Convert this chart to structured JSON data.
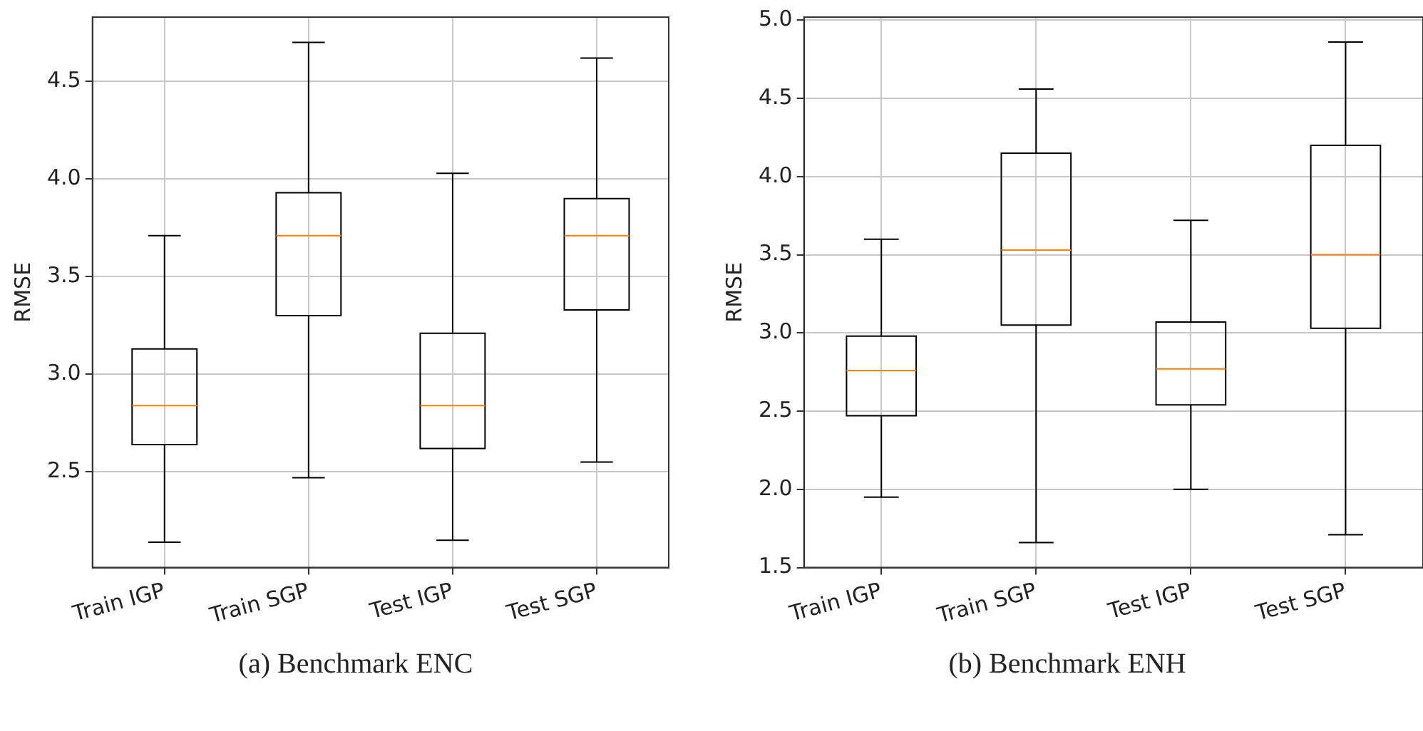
{
  "chart_data": [
    {
      "type": "box",
      "title": "(a) Benchmark ENC",
      "ylabel": "RMSE",
      "categories": [
        "Train IGP",
        "Train SGP",
        "Test IGP",
        "Test SGP"
      ],
      "boxes": [
        {
          "low": 2.14,
          "q1": 2.64,
          "median": 2.84,
          "q3": 3.13,
          "high": 3.71
        },
        {
          "low": 2.47,
          "q1": 3.3,
          "median": 3.71,
          "q3": 3.93,
          "high": 4.7
        },
        {
          "low": 2.15,
          "q1": 2.62,
          "median": 2.84,
          "q3": 3.21,
          "high": 4.03
        },
        {
          "low": 2.55,
          "q1": 3.33,
          "median": 3.71,
          "q3": 3.9,
          "high": 4.62
        }
      ],
      "ylim": [
        2.01,
        4.83
      ],
      "yticks": [
        2.5,
        {
          "value": 3,
          "label": "3.0"
        },
        3.5,
        {
          "value": 4,
          "label": "4.0"
        },
        4.5
      ],
      "grid": true
    },
    {
      "type": "box",
      "title": "(b) Benchmark ENH",
      "ylabel": "RMSE",
      "categories": [
        "Train IGP",
        "Train SGP",
        "Test IGP",
        "Test SGP"
      ],
      "boxes": [
        {
          "low": 1.95,
          "q1": 2.47,
          "median": 2.76,
          "q3": 2.98,
          "high": 3.6
        },
        {
          "low": 1.66,
          "q1": 3.05,
          "median": 3.53,
          "q3": 4.15,
          "high": 4.56
        },
        {
          "low": 2.0,
          "q1": 2.54,
          "median": 2.77,
          "q3": 3.07,
          "high": 3.72
        },
        {
          "low": 1.71,
          "q1": 3.03,
          "median": 3.5,
          "q3": 4.2,
          "high": 4.86
        }
      ],
      "ylim": [
        1.5,
        5.02
      ],
      "yticks": [
        1.5,
        {
          "value": 2,
          "label": "2.0"
        },
        2.5,
        {
          "value": 3,
          "label": "3.0"
        },
        3.5,
        {
          "value": 4,
          "label": "4.0"
        },
        4.5,
        {
          "value": 5,
          "label": "5.0"
        }
      ],
      "grid": true
    }
  ]
}
